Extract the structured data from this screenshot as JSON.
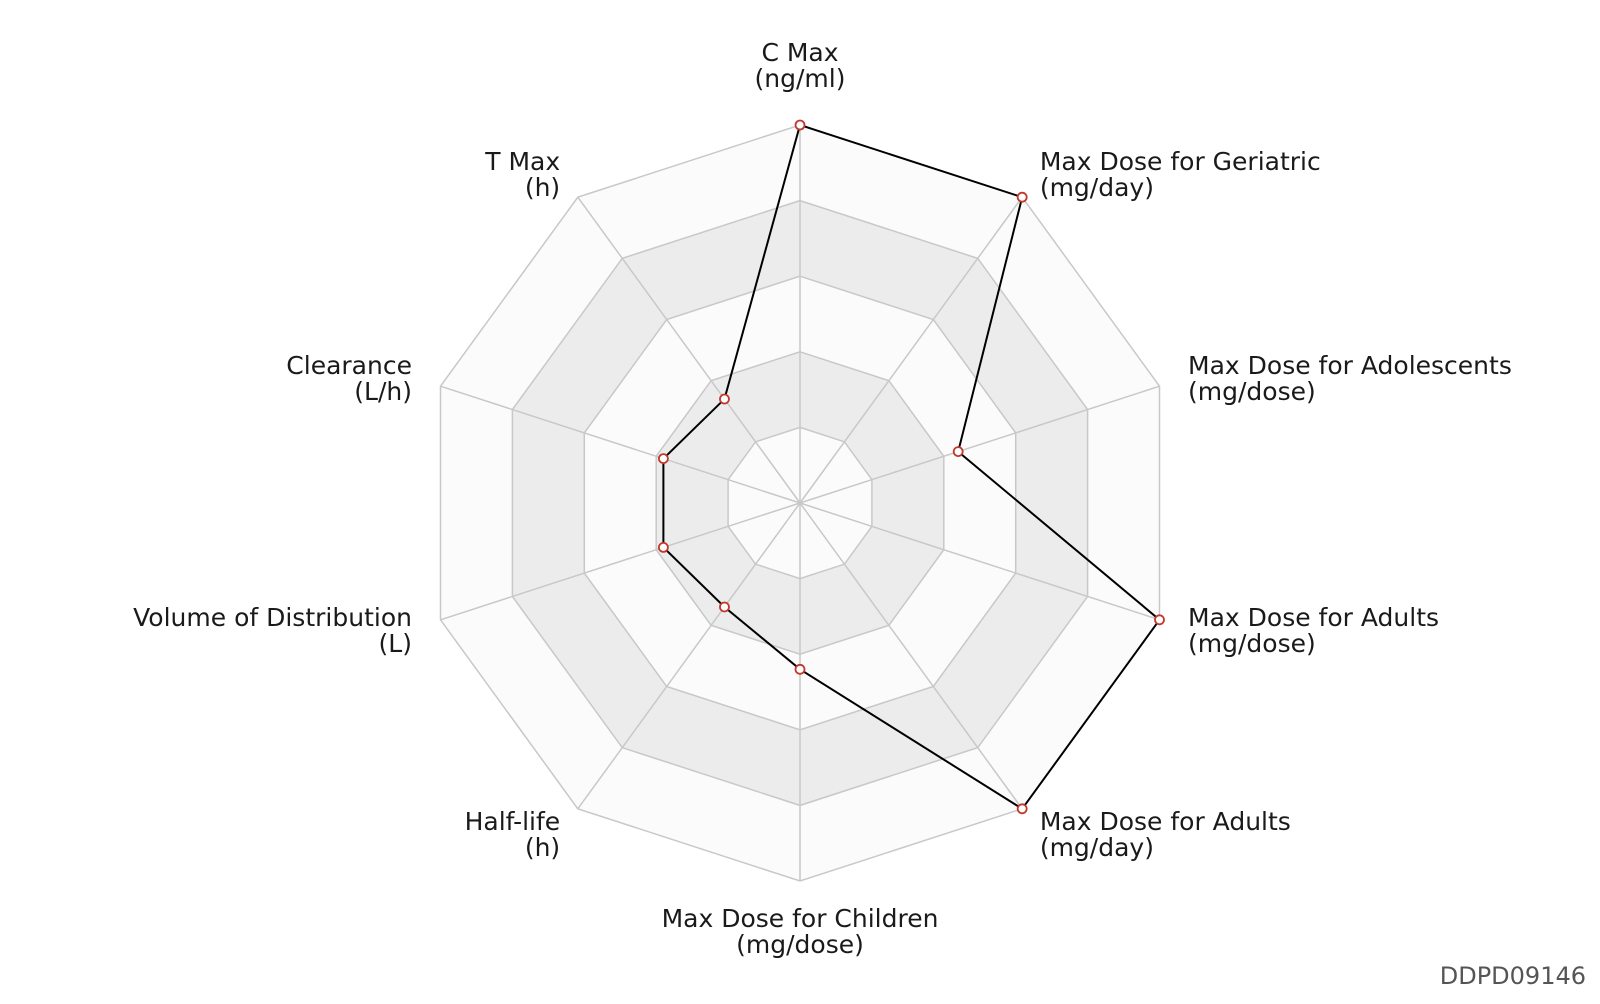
{
  "chart_data": {
    "type": "radar",
    "axes": [
      {
        "label": "C Max",
        "unit": "(ng/ml)",
        "value": 1.0
      },
      {
        "label": "Max Dose for Geriatric",
        "unit": "(mg/day)",
        "value": 1.0
      },
      {
        "label": "Max Dose for Adolescents",
        "unit": "(mg/dose)",
        "value": 0.44
      },
      {
        "label": "Max Dose for Adults",
        "unit": "(mg/dose)",
        "value": 1.0
      },
      {
        "label": "Max Dose for Adults",
        "unit": "(mg/day)",
        "value": 1.0
      },
      {
        "label": "Max Dose for Children",
        "unit": "(mg/dose)",
        "value": 0.44
      },
      {
        "label": "Half-life",
        "unit": "(h)",
        "value": 0.34
      },
      {
        "label": "Volume of Distribution",
        "unit": "(L)",
        "value": 0.38
      },
      {
        "label": "Clearance",
        "unit": "(L/h)",
        "value": 0.38
      },
      {
        "label": "T Max",
        "unit": "(h)",
        "value": 0.34
      }
    ],
    "range": [
      0,
      1
    ],
    "rings": 5,
    "grid": true,
    "colors": {
      "series_line": "#000000",
      "marker_stroke": "#c0392b",
      "marker_fill": "#ffffff",
      "grid_line": "#c8c8c8",
      "band_dark": "#ececec",
      "band_light": "#fbfbfb"
    }
  },
  "footer": {
    "chart_id": "DDPD09146"
  }
}
